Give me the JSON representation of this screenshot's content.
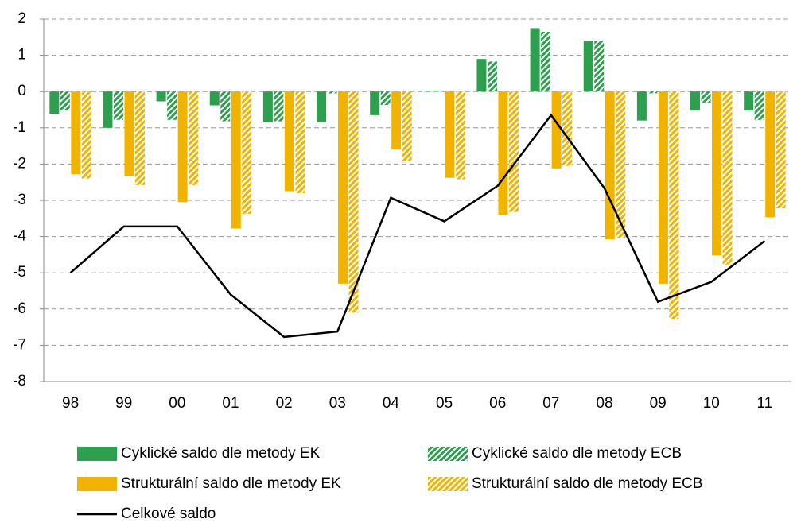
{
  "chart_data": {
    "type": "bar",
    "categories": [
      "98",
      "99",
      "00",
      "01",
      "02",
      "03",
      "04",
      "05",
      "06",
      "07",
      "08",
      "09",
      "10",
      "11"
    ],
    "series": [
      {
        "name": "Cyklické saldo dle metody EK",
        "color": "#2e9e4f",
        "hatch": false,
        "values": [
          -0.62,
          -1.0,
          -0.27,
          -0.38,
          -0.85,
          -0.85,
          -0.65,
          0.02,
          0.9,
          1.75,
          1.4,
          -0.8,
          -0.52,
          -0.52
        ]
      },
      {
        "name": "Cyklické saldo dle metody ECB",
        "color": "#2e9e4f",
        "hatch": true,
        "values": [
          -0.52,
          -0.78,
          -0.78,
          -0.82,
          -0.82,
          -0.05,
          -0.37,
          0.03,
          0.83,
          1.65,
          1.4,
          -0.05,
          -0.3,
          -0.78
        ]
      },
      {
        "name": "Strukturální saldo dle metody EK",
        "color": "#f0b400",
        "hatch": false,
        "values": [
          -2.28,
          -2.32,
          -3.05,
          -3.78,
          -2.75,
          -5.3,
          -1.6,
          -2.38,
          -3.4,
          -2.12,
          -4.08,
          -5.3,
          -4.52,
          -3.47
        ]
      },
      {
        "name": "Strukturální saldo dle metody ECB",
        "color": "#f0b400",
        "hatch": true,
        "values": [
          -2.4,
          -2.58,
          -2.58,
          -3.37,
          -2.8,
          -6.1,
          -1.92,
          -2.42,
          -3.32,
          -2.05,
          -4.05,
          -6.27,
          -4.77,
          -3.22
        ]
      },
      {
        "name": "Celkové saldo",
        "color": "#000000",
        "type": "line",
        "values": [
          -5.0,
          -3.72,
          -3.72,
          -5.6,
          -6.77,
          -6.62,
          -2.93,
          -3.58,
          -2.6,
          -0.65,
          -2.67,
          -5.8,
          -5.25,
          -4.12
        ]
      }
    ],
    "ylim": [
      -8,
      2
    ],
    "yticks": [
      -8,
      -7,
      -6,
      -5,
      -4,
      -3,
      -2,
      -1,
      0,
      1,
      2
    ],
    "grid": true
  }
}
